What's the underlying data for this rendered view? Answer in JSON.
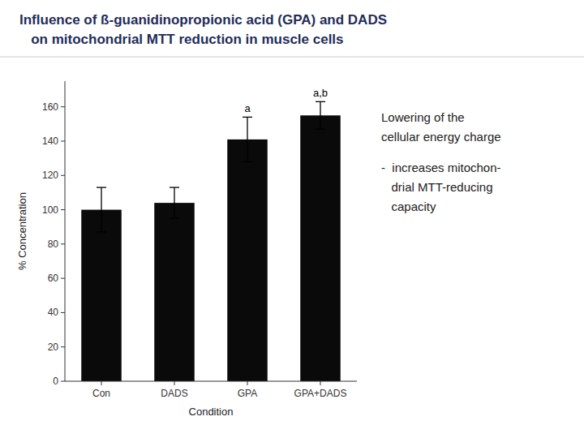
{
  "chart_data": {
    "type": "bar",
    "title": "Influence of ß-guanidinopropionic acid (GPA) and DADS",
    "subtitle": "   on mitochondrial MTT reduction in muscle cells",
    "categories": [
      "Con",
      "DADS",
      "GPA",
      "GPA+DADS"
    ],
    "values": [
      100,
      104,
      141,
      155
    ],
    "errors": [
      13,
      9,
      13,
      8
    ],
    "color": "#0a0a0a",
    "xlabel": "Condition",
    "ylabel": "% Concentration",
    "ylim": [
      0,
      175
    ],
    "yticks": [
      0,
      20,
      40,
      60,
      80,
      100,
      120,
      140,
      160
    ],
    "grid": false,
    "annotations": [
      {
        "text": "a",
        "category": "GPA",
        "y": 155
      },
      {
        "text": "a,b",
        "category": "GPA+DADS",
        "y": 164
      }
    ],
    "note": [
      [
        "Lowering of the",
        "cellular energy charge"
      ],
      [
        "-  increases mitochon-",
        "   drial MTT-reducing",
        "   capacity"
      ]
    ]
  }
}
